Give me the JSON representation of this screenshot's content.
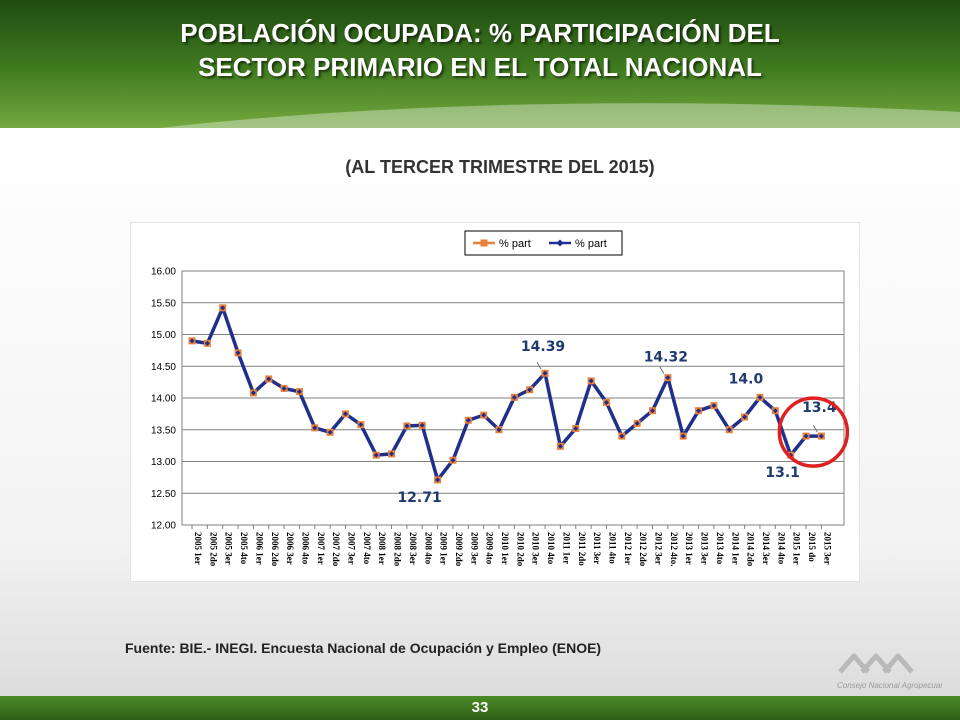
{
  "header": {
    "title_line1": "POBLACIÓN OCUPADA: % PARTICIPACIÓN DEL",
    "title_line2": "SECTOR PRIMARIO EN EL TOTAL NACIONAL"
  },
  "subtitle": "(AL TERCER TRIMESTRE DEL 2015)",
  "source": "Fuente: BIE.- INEGI. Encuesta Nacional de Ocupación y Empleo (ENOE)",
  "page_number": "33",
  "logo_text": "Consejo Nacional Agropecuario",
  "chart_data": {
    "type": "line",
    "title": "",
    "xlabel": "",
    "ylabel": "",
    "ylim": [
      12.0,
      16.0
    ],
    "yticks": [
      "12.00",
      "12.50",
      "13.00",
      "13.50",
      "14.00",
      "14.50",
      "15.00",
      "15.50",
      "16.00"
    ],
    "grid": true,
    "legend_position": "top-right",
    "categories": [
      "2005 1er",
      "2005 2do",
      "2005 3er",
      "2005 4to",
      "2006 1er",
      "2006 2do",
      "2006 3er",
      "2006 4to",
      "2007 1er",
      "2007 2do",
      "2007 3er",
      "2007 4to",
      "2008 1er",
      "2008 2do",
      "2008 3er",
      "2008 4to",
      "2009 1er",
      "2009 2do",
      "2009 3er",
      "2009 4to",
      "2010 1er",
      "2010 2do",
      "2010 3er",
      "2010 4to",
      "2011 1er",
      "2011 2do",
      "2011 3er",
      "2011 4to",
      "2012 1er",
      "2012 2do",
      "2012 3er",
      "2012 4to.",
      "2013 1er",
      "2013 3er",
      "2013 4to",
      "2014 1er",
      "2014 2do",
      "2014 3er",
      "2014 4to",
      "2015 1er",
      "2015 do",
      "2015 3er"
    ],
    "series": [
      {
        "name": "% part",
        "color": "#e8803a",
        "marker": "square",
        "values": [
          14.9,
          14.86,
          15.42,
          14.71,
          14.08,
          14.3,
          14.15,
          14.1,
          13.53,
          13.46,
          13.75,
          13.58,
          13.1,
          13.12,
          13.56,
          13.57,
          12.71,
          13.02,
          13.65,
          13.73,
          13.5,
          14.01,
          14.13,
          14.39,
          13.24,
          13.52,
          14.27,
          13.93,
          13.4,
          13.6,
          13.8,
          14.32,
          13.4,
          13.8,
          13.88,
          13.5,
          13.7,
          14.01,
          13.8,
          13.1,
          13.4,
          13.4
        ]
      },
      {
        "name": "% part",
        "color": "#1f2f8a",
        "marker": "diamond",
        "values": [
          14.9,
          14.86,
          15.42,
          14.71,
          14.08,
          14.3,
          14.15,
          14.1,
          13.53,
          13.46,
          13.75,
          13.58,
          13.1,
          13.12,
          13.56,
          13.57,
          12.71,
          13.02,
          13.65,
          13.73,
          13.5,
          14.01,
          14.13,
          14.39,
          13.24,
          13.52,
          14.27,
          13.93,
          13.4,
          13.6,
          13.8,
          14.32,
          13.4,
          13.8,
          13.88,
          13.5,
          13.7,
          14.01,
          13.8,
          13.1,
          13.4,
          13.4
        ]
      }
    ],
    "annotations": [
      {
        "text": "12.71",
        "index": 16,
        "position": "below"
      },
      {
        "text": "14.39",
        "index": 23,
        "position": "above"
      },
      {
        "text": "14.32",
        "index": 31,
        "position": "above"
      },
      {
        "text": "14.0",
        "index": 37,
        "position": "above"
      },
      {
        "text": "13.1",
        "index": 39,
        "position": "below"
      },
      {
        "text": "13.4",
        "index": 41,
        "position": "above"
      }
    ],
    "highlight": {
      "index": 41,
      "color": "#e02020"
    }
  }
}
